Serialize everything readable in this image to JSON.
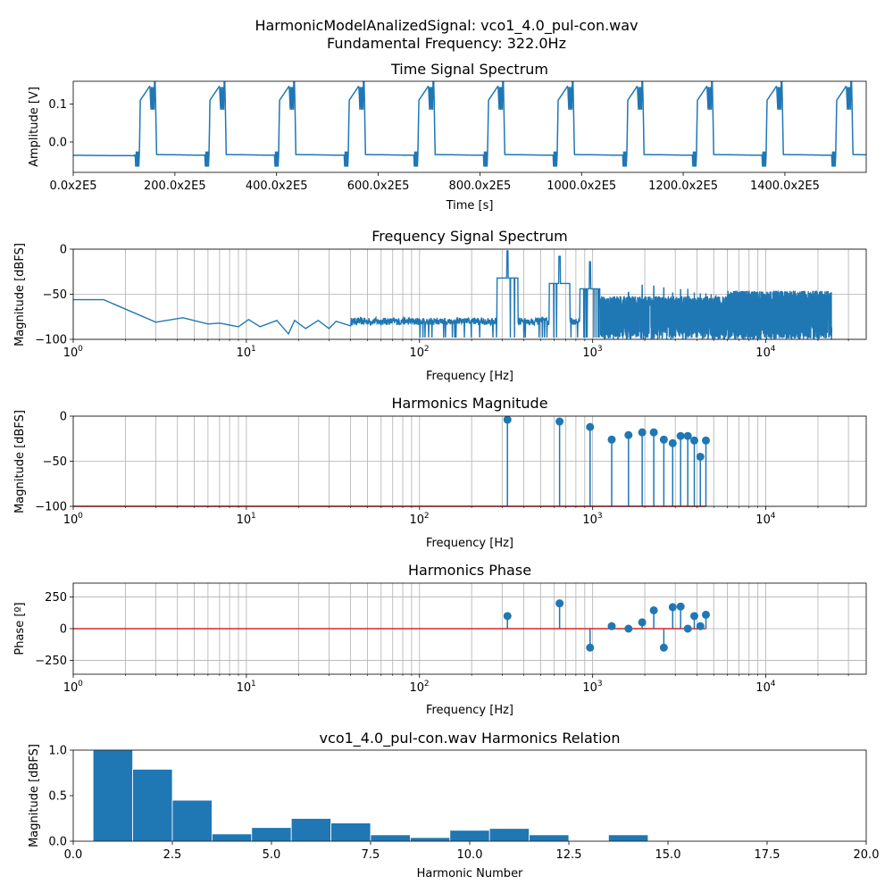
{
  "figure": {
    "title_line1": "HarmonicModelAnalizedSignal: vco1_4.0_pul-con.wav",
    "title_line2": "Fundamental Frequency: 322.0Hz"
  },
  "colors": {
    "series": "#1f77b4",
    "baseline": "#d62728",
    "grid": "#b0b0b0"
  },
  "chart_data": [
    {
      "id": "time",
      "type": "line",
      "title": "Time Signal Spectrum",
      "xlabel": "Time [s]",
      "ylabel": "Amplitude [V]",
      "xlim": [
        0,
        1560
      ],
      "ylim": [
        -0.08,
        0.16
      ],
      "xticks": [
        0,
        200,
        400,
        600,
        800,
        1000,
        1200,
        1400
      ],
      "xtick_labels": [
        "0.0x2E5",
        "200.0x2E5",
        "400.0x2E5",
        "600.0x2E5",
        "800.0x2E5",
        "1000.0x2E5",
        "1200.0x2E5",
        "1400.0x2E5"
      ],
      "yticks": [
        0.0,
        0.1
      ],
      "ytick_labels": [
        "0.0",
        "0.1"
      ],
      "grid": false,
      "waveform": {
        "period": 137,
        "first_rise": 130,
        "high_duration": 32,
        "low_level": -0.035,
        "high_level": 0.11,
        "peak_level": 0.145,
        "dip_level": -0.065
      }
    },
    {
      "id": "freq",
      "type": "line",
      "title": "Frequency Signal Spectrum",
      "xlabel": "Frequency [Hz]",
      "ylabel": "Magnitude [dBFS]",
      "xscale": "log",
      "xlim": [
        1,
        38000
      ],
      "ylim": [
        -100,
        0
      ],
      "xticks": [
        1,
        10,
        100,
        1000,
        10000
      ],
      "xtick_labels": [
        "10^0",
        "10^1",
        "10^2",
        "10^3",
        "10^4"
      ],
      "yticks": [
        -100,
        -50,
        0
      ],
      "ytick_labels": [
        "−100",
        "−50",
        "0"
      ],
      "grid": true,
      "low_freq_points": [
        [
          1,
          -56
        ],
        [
          1.5,
          -56
        ],
        [
          3,
          -81
        ],
        [
          4.3,
          -76
        ],
        [
          6,
          -83
        ],
        [
          7,
          -82
        ],
        [
          9,
          -86
        ],
        [
          10.3,
          -78
        ],
        [
          12,
          -86
        ],
        [
          15,
          -79
        ],
        [
          17.5,
          -94
        ],
        [
          19,
          -79
        ],
        [
          22,
          -88
        ],
        [
          26,
          -79
        ],
        [
          30,
          -88
        ],
        [
          33,
          -80
        ],
        [
          40,
          -85
        ]
      ],
      "peaks": [
        [
          322,
          -2
        ],
        [
          644,
          -8
        ],
        [
          966,
          -14
        ],
        [
          1288,
          -56
        ],
        [
          1610,
          -48
        ],
        [
          1932,
          -40
        ],
        [
          2254,
          -41
        ],
        [
          2576,
          -43
        ],
        [
          2898,
          -48
        ],
        [
          3220,
          -45
        ],
        [
          3542,
          -44
        ],
        [
          3864,
          -48
        ],
        [
          4186,
          -49
        ],
        [
          4508,
          -49
        ],
        [
          4830,
          -50
        ],
        [
          5152,
          -51
        ],
        [
          5474,
          -52
        ],
        [
          5796,
          -52
        ],
        [
          6118,
          -53
        ],
        [
          6440,
          -53
        ]
      ],
      "noise_floor": -80,
      "upper_limit": 24000
    },
    {
      "id": "harm_mag",
      "type": "stem",
      "title": "Harmonics Magnitude",
      "xlabel": "Frequency [Hz]",
      "ylabel": "Magnitude [dBFS]",
      "xscale": "log",
      "xlim": [
        1,
        38000
      ],
      "ylim": [
        -100,
        0
      ],
      "xticks": [
        1,
        10,
        100,
        1000,
        10000
      ],
      "xtick_labels": [
        "10^0",
        "10^1",
        "10^2",
        "10^3",
        "10^4"
      ],
      "yticks": [
        -100,
        -50,
        0
      ],
      "ytick_labels": [
        "−100",
        "−50",
        "0"
      ],
      "grid": true,
      "baseline": -100,
      "x": [
        322,
        644,
        966,
        1288,
        1610,
        1932,
        2254,
        2576,
        2898,
        3220,
        3542,
        3864,
        4186,
        4508
      ],
      "y": [
        -4,
        -6,
        -12,
        -26,
        -21,
        -18,
        -18,
        -26,
        -30,
        -22,
        -22,
        -27,
        -45,
        -27
      ]
    },
    {
      "id": "harm_phase",
      "type": "stem",
      "title": "Harmonics Phase",
      "xlabel": "Frequency [Hz]",
      "ylabel": "Phase [º]",
      "xscale": "log",
      "xlim": [
        1,
        38000
      ],
      "ylim": [
        -360,
        360
      ],
      "xticks": [
        1,
        10,
        100,
        1000,
        10000
      ],
      "xtick_labels": [
        "10^0",
        "10^1",
        "10^2",
        "10^3",
        "10^4"
      ],
      "yticks": [
        -250,
        0,
        250
      ],
      "ytick_labels": [
        "−250",
        "0",
        "250"
      ],
      "grid": true,
      "baseline": 0,
      "x": [
        322,
        644,
        966,
        1288,
        1610,
        1932,
        2254,
        2576,
        2898,
        3220,
        3542,
        3864,
        4186,
        4508
      ],
      "y": [
        100,
        200,
        -150,
        20,
        0,
        50,
        145,
        -150,
        170,
        175,
        0,
        100,
        20,
        110
      ]
    },
    {
      "id": "relation",
      "type": "bar",
      "title": "vco1_4.0_pul-con.wav Harmonics Relation",
      "xlabel": "Harmonic Number",
      "ylabel": "Magnitude [dBFS]",
      "xlim": [
        0,
        20
      ],
      "ylim": [
        0,
        1
      ],
      "xticks": [
        0,
        2.5,
        5,
        7.5,
        10,
        12.5,
        15,
        17.5,
        20
      ],
      "xtick_labels": [
        "0.0",
        "2.5",
        "5.0",
        "7.5",
        "10.0",
        "12.5",
        "15.0",
        "17.5",
        "20.0"
      ],
      "yticks": [
        0,
        0.5,
        1
      ],
      "ytick_labels": [
        "0.0",
        "0.5",
        "1.0"
      ],
      "grid": false,
      "categories": [
        1,
        2,
        3,
        4,
        5,
        6,
        7,
        8,
        9,
        10,
        11,
        12,
        13,
        14
      ],
      "values": [
        1.0,
        0.79,
        0.45,
        0.08,
        0.15,
        0.25,
        0.2,
        0.07,
        0.04,
        0.12,
        0.14,
        0.07,
        0.0,
        0.07
      ]
    }
  ]
}
